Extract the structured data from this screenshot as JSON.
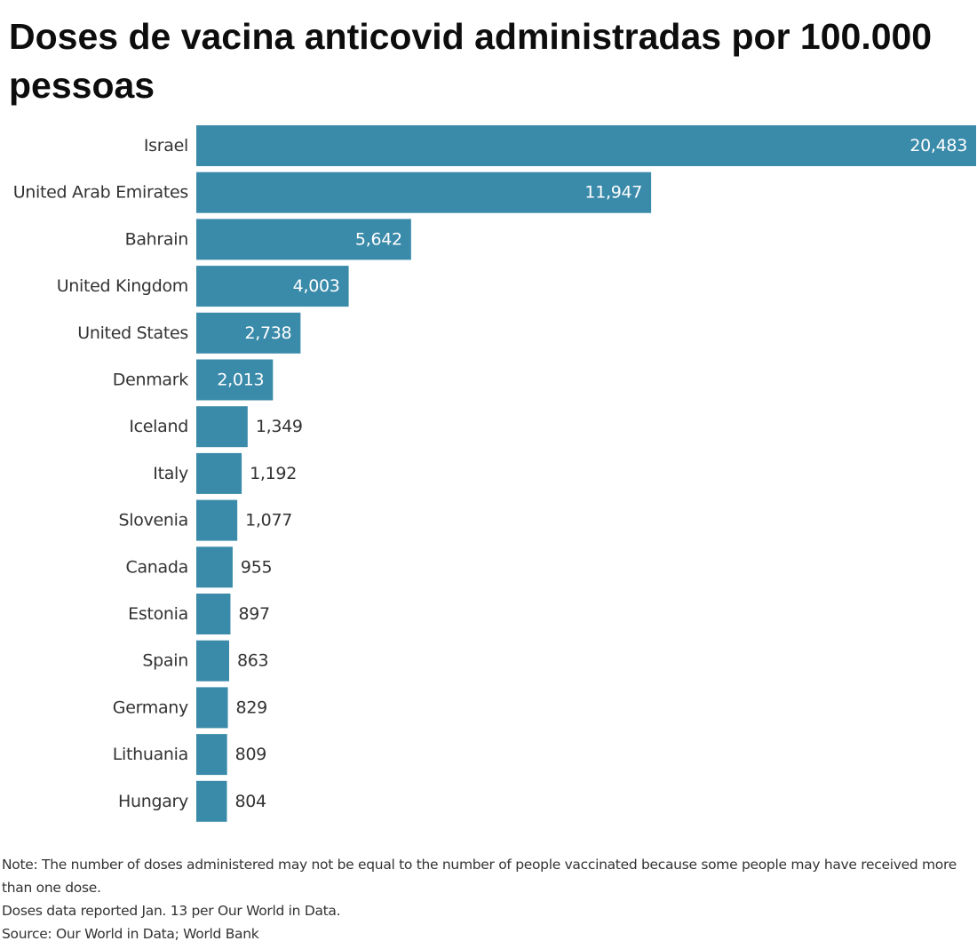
{
  "title": "Doses de vacina anticovid administradas por 100.000 pessoas",
  "colors": {
    "bar": "#3a8aaa",
    "label_inside": "#ffffff",
    "label_outside": "#333333",
    "category_text": "#333333"
  },
  "chart_data": {
    "type": "bar",
    "orientation": "horizontal",
    "title": "Doses de vacina anticovid administradas por 100.000 pessoas",
    "xlabel": "",
    "ylabel": "",
    "categories": [
      "Israel",
      "United Arab Emirates",
      "Bahrain",
      "United Kingdom",
      "United States",
      "Denmark",
      "Iceland",
      "Italy",
      "Slovenia",
      "Canada",
      "Estonia",
      "Spain",
      "Germany",
      "Lithuania",
      "Hungary"
    ],
    "values": [
      20483,
      11947,
      5642,
      4003,
      2738,
      2013,
      1349,
      1192,
      1077,
      955,
      897,
      863,
      829,
      809,
      804
    ],
    "value_labels": [
      "20,483",
      "11,947",
      "5,642",
      "4,003",
      "2,738",
      "2,013",
      "1,349",
      "1,192",
      "1,077",
      "955",
      "897",
      "863",
      "829",
      "809",
      "804"
    ],
    "xlim": [
      0,
      20483
    ],
    "grid": false,
    "legend": "none"
  },
  "notes": {
    "note": "Note: The number of doses administered may not be equal to the number of people vaccinated because some people may have received more than one dose.",
    "doses": "Doses data reported Jan. 13 per Our World in Data.",
    "source": "Source: Our World in Data; World Bank"
  }
}
